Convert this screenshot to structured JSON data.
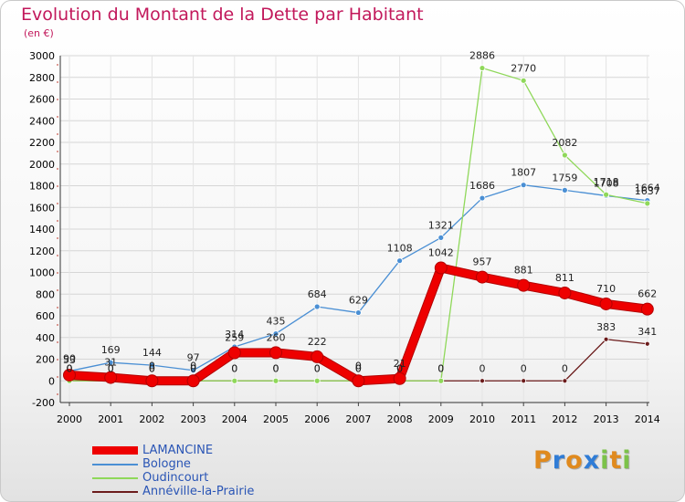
{
  "title": "Evolution du Montant de la Dette par Habitant",
  "subtitle": "(en €)",
  "logo": {
    "letters": [
      "P",
      "r",
      "o",
      "x",
      "i",
      "t",
      "i"
    ],
    "colors": [
      "#e08a1e",
      "#2f7cd6",
      "#e08a1e",
      "#2f7cd6",
      "#7cc24a",
      "#e08a1e",
      "#7cc24a"
    ]
  },
  "chart_data": {
    "type": "line",
    "title": "Evolution du Montant de la Dette par Habitant",
    "ylabel": "(en €)",
    "x": [
      "2000",
      "2001",
      "2002",
      "2003",
      "2004",
      "2005",
      "2006",
      "2007",
      "2008",
      "2009",
      "2010",
      "2011",
      "2012",
      "2013",
      "2014"
    ],
    "ylim": [
      -200,
      3000
    ],
    "yticks": [
      -200,
      0,
      200,
      400,
      600,
      800,
      1000,
      1200,
      1400,
      1600,
      1800,
      2000,
      2200,
      2400,
      2600,
      2800,
      3000
    ],
    "grid": true,
    "legend_position": "bottom-left",
    "series": [
      {
        "name": "LAMANCINE",
        "color": "#ee0000",
        "values": [
          53,
          31,
          0,
          0,
          259,
          260,
          222,
          0,
          21,
          1042,
          957,
          881,
          811,
          710,
          662
        ],
        "labels": [
          "53",
          "31",
          "0",
          "0",
          "259",
          "260",
          "222",
          "0",
          "21",
          "1042",
          "957",
          "881",
          "811",
          "710",
          "662"
        ]
      },
      {
        "name": "Bologne",
        "color": "#4a8fd4",
        "values": [
          90,
          169,
          144,
          97,
          314,
          435,
          684,
          629,
          1108,
          1321,
          1686,
          1807,
          1759,
          1708,
          1664
        ],
        "labels": [
          "90",
          "169",
          "144",
          "97",
          "314",
          "435",
          "684",
          "629",
          "1108",
          "1321",
          "1686",
          "1807",
          "1759",
          "1708",
          "1664"
        ]
      },
      {
        "name": "Oudincourt",
        "color": "#8fd85a",
        "values": [
          0,
          0,
          0,
          0,
          0,
          0,
          0,
          0,
          0,
          0,
          2886,
          2770,
          2082,
          1718,
          1637
        ],
        "labels": [
          "0",
          "0",
          "0",
          "0",
          "0",
          "0",
          "0",
          "0",
          "0",
          "0",
          "2886",
          "2770",
          "2082",
          "1718",
          "1637"
        ]
      },
      {
        "name": "Annéville-la-Prairie",
        "color": "#6b1b1b",
        "values": [
          0,
          0,
          0,
          0,
          0,
          0,
          0,
          0,
          0,
          0,
          0,
          0,
          0,
          383,
          341
        ],
        "labels": [
          "0",
          "0",
          "0",
          "0",
          "0",
          "0",
          "0",
          "0",
          "0",
          "0",
          "0",
          "0",
          "0",
          "383",
          "341"
        ]
      }
    ]
  }
}
